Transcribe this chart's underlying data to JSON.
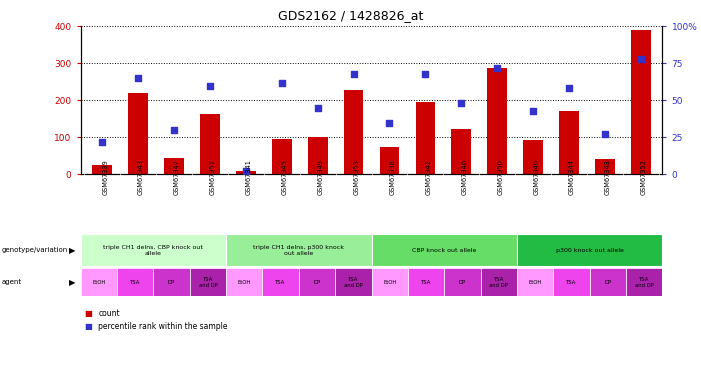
{
  "title": "GDS2162 / 1428826_at",
  "samples": [
    "GSM67339",
    "GSM67343",
    "GSM67347",
    "GSM67351",
    "GSM67341",
    "GSM67345",
    "GSM67349",
    "GSM67353",
    "GSM67338",
    "GSM67342",
    "GSM67346",
    "GSM67350",
    "GSM67340",
    "GSM67344",
    "GSM67348",
    "GSM67352"
  ],
  "counts": [
    25,
    220,
    45,
    163,
    10,
    96,
    100,
    228,
    75,
    195,
    122,
    287,
    92,
    170,
    42,
    390
  ],
  "percentiles": [
    22,
    65,
    30,
    60,
    2,
    62,
    45,
    68,
    35,
    68,
    48,
    72,
    43,
    58,
    27,
    78
  ],
  "ylim_left": [
    0,
    400
  ],
  "ylim_right": [
    0,
    100
  ],
  "yticks_left": [
    0,
    100,
    200,
    300,
    400
  ],
  "yticks_right": [
    0,
    25,
    50,
    75,
    100
  ],
  "bar_color": "#cc0000",
  "dot_color": "#3333cc",
  "plot_bg": "#ffffff",
  "grid_color": "#000000",
  "left_tick_color": "#cc0000",
  "right_tick_color": "#3333cc",
  "tick_bg_color": "#c8c8c8",
  "genotype_groups": [
    {
      "label": "triple CH1 delns, CBP knock out\nallele",
      "start": 0,
      "end": 4,
      "color": "#ccffcc"
    },
    {
      "label": "triple CH1 delns, p300 knock\nout allele",
      "start": 4,
      "end": 8,
      "color": "#99ee99"
    },
    {
      "label": "CBP knock out allele",
      "start": 8,
      "end": 12,
      "color": "#66dd66"
    },
    {
      "label": "p300 knock out allele",
      "start": 12,
      "end": 16,
      "color": "#22bb44"
    }
  ],
  "agent_color_map": {
    "EtOH": "#ff99ff",
    "TSA": "#ee44ee",
    "DP": "#cc33cc",
    "TSA\nand DP": "#aa22aa"
  },
  "agent_labels": [
    "EtOH",
    "TSA",
    "DP",
    "TSA\nand DP",
    "EtOH",
    "TSA",
    "DP",
    "TSA\nand DP",
    "EtOH",
    "TSA",
    "DP",
    "TSA\nand DP",
    "EtOH",
    "TSA",
    "DP",
    "TSA\nand DP"
  ],
  "legend_count_color": "#cc0000",
  "legend_pct_color": "#3333cc"
}
